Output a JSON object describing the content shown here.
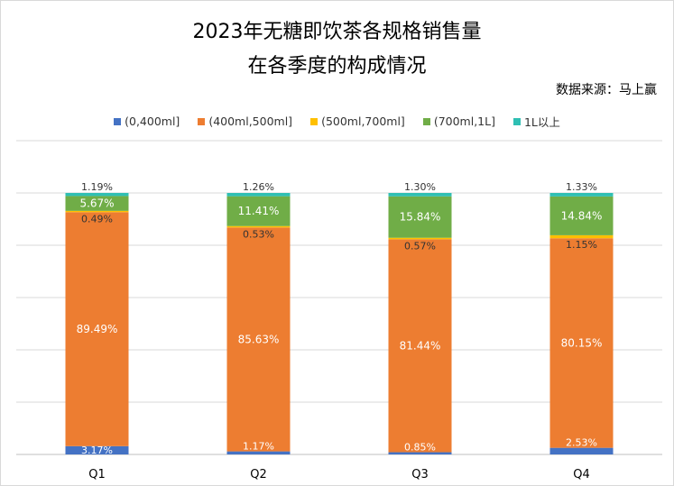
{
  "chart_data": {
    "type": "stacked-bar-percent",
    "title": "2023年无糖即饮茶各规格销售量",
    "subtitle": "在各季度的构成情况",
    "source": "数据来源：马上赢",
    "categories": [
      "Q1",
      "Q2",
      "Q3",
      "Q4"
    ],
    "ylim": [
      0,
      120
    ],
    "grid": true,
    "legend_position": "top",
    "series": [
      {
        "name": "(0,400ml]",
        "color": "#4472C4",
        "label_color": "#ffffff",
        "values": [
          3.17,
          1.17,
          0.85,
          2.53
        ]
      },
      {
        "name": "(400ml,500ml]",
        "color": "#ED7D31",
        "label_color": "#ffffff",
        "values": [
          89.49,
          85.63,
          81.44,
          80.15
        ]
      },
      {
        "name": "(500ml,700ml]",
        "color": "#FFC000",
        "label_color": "#333333",
        "values": [
          0.49,
          0.53,
          0.57,
          1.15
        ]
      },
      {
        "name": "(700ml,1L]",
        "color": "#70AD47",
        "label_color": "#ffffff",
        "values": [
          5.67,
          11.41,
          15.84,
          14.84
        ]
      },
      {
        "name": "1L以上",
        "color": "#2FBFB3",
        "label_color": "#333333",
        "values": [
          1.19,
          1.26,
          1.3,
          1.33
        ]
      }
    ]
  }
}
